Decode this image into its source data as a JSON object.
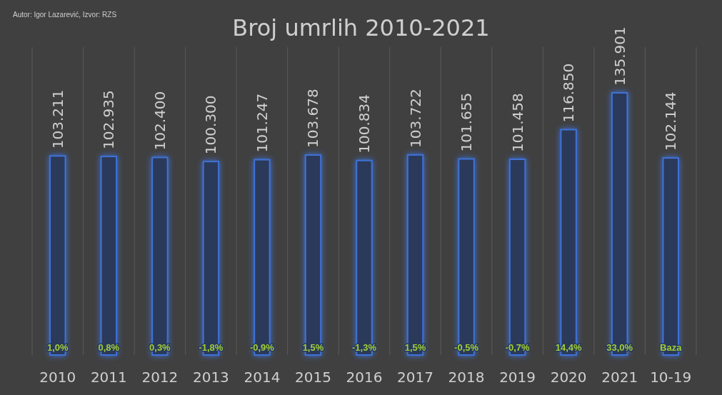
{
  "chart_data": {
    "type": "bar",
    "title": "Broj umrlih 2010-2021",
    "categories": [
      "2010",
      "2011",
      "2012",
      "2013",
      "2014",
      "2015",
      "2016",
      "2017",
      "2018",
      "2019",
      "2020",
      "2021",
      "10-19"
    ],
    "values": [
      103211,
      102935,
      102400,
      100300,
      101247,
      103678,
      100834,
      103722,
      101655,
      101458,
      116850,
      135901,
      102144
    ],
    "value_labels": [
      "103.211",
      "102.935",
      "102.400",
      "100.300",
      "101.247",
      "103.678",
      "100.834",
      "103.722",
      "101.655",
      "101.458",
      "116.850",
      "135.901",
      "102.144"
    ],
    "color": "#3f72d8",
    "grid": "x",
    "annotations": [
      "Autor: Igor Lazarević, Izvor: RZS",
      {
        "text": "1,0%",
        "x": "2010",
        "y": 0
      },
      {
        "text": "0,8%",
        "x": "2011",
        "y": 0
      },
      {
        "text": "0,3%",
        "x": "2012",
        "y": 0
      },
      {
        "text": "-1,8%",
        "x": "2013",
        "y": 0
      },
      {
        "text": "-0,9%",
        "x": "2014",
        "y": 0
      },
      {
        "text": "1,5%",
        "x": "2015",
        "y": 0
      },
      {
        "text": "-1,3%",
        "x": "2016",
        "y": 0
      },
      {
        "text": "1,5%",
        "x": "2017",
        "y": 0
      },
      {
        "text": "-0,5%",
        "x": "2018",
        "y": 0
      },
      {
        "text": "-0,7%",
        "x": "2019",
        "y": 0
      },
      {
        "text": "14,4%",
        "x": "2020",
        "y": 0
      },
      {
        "text": "33,0%",
        "x": "2021",
        "y": 0
      },
      {
        "text": "Baza",
        "x": "10-19",
        "y": 0
      }
    ]
  }
}
